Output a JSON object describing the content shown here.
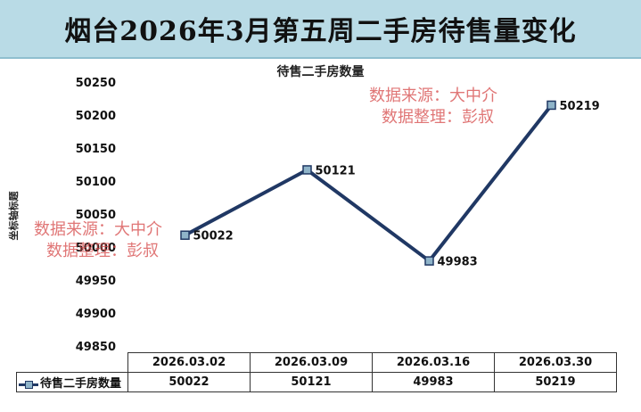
{
  "header": {
    "title": "烟台2026年3月第五周二手房待售量变化"
  },
  "watermark": {
    "line1": "数据来源：大中介",
    "line2": "数据整理：彭叔"
  },
  "colors": {
    "title_bg": "#b9dbe6",
    "line": "#203864",
    "marker_fill": "#8fb4c9",
    "watermark": "#d75050"
  },
  "chart_data": {
    "type": "line",
    "title": "待售二手房数量",
    "ylabel": "坐标轴标题",
    "ylim": [
      49850,
      50250
    ],
    "y_ticks": [
      50250,
      50200,
      50150,
      50100,
      50050,
      50000,
      49950,
      49900,
      49850
    ],
    "categories": [
      "2026.03.02",
      "2026.03.09",
      "2026.03.16",
      "2026.03.30"
    ],
    "series": [
      {
        "name": "待售二手房数量",
        "values": [
          50022,
          50121,
          49983,
          50219
        ]
      }
    ],
    "data_labels": [
      "50022",
      "50121",
      "49983",
      "50219"
    ],
    "legend": "bottom-data-table",
    "grid": false
  }
}
